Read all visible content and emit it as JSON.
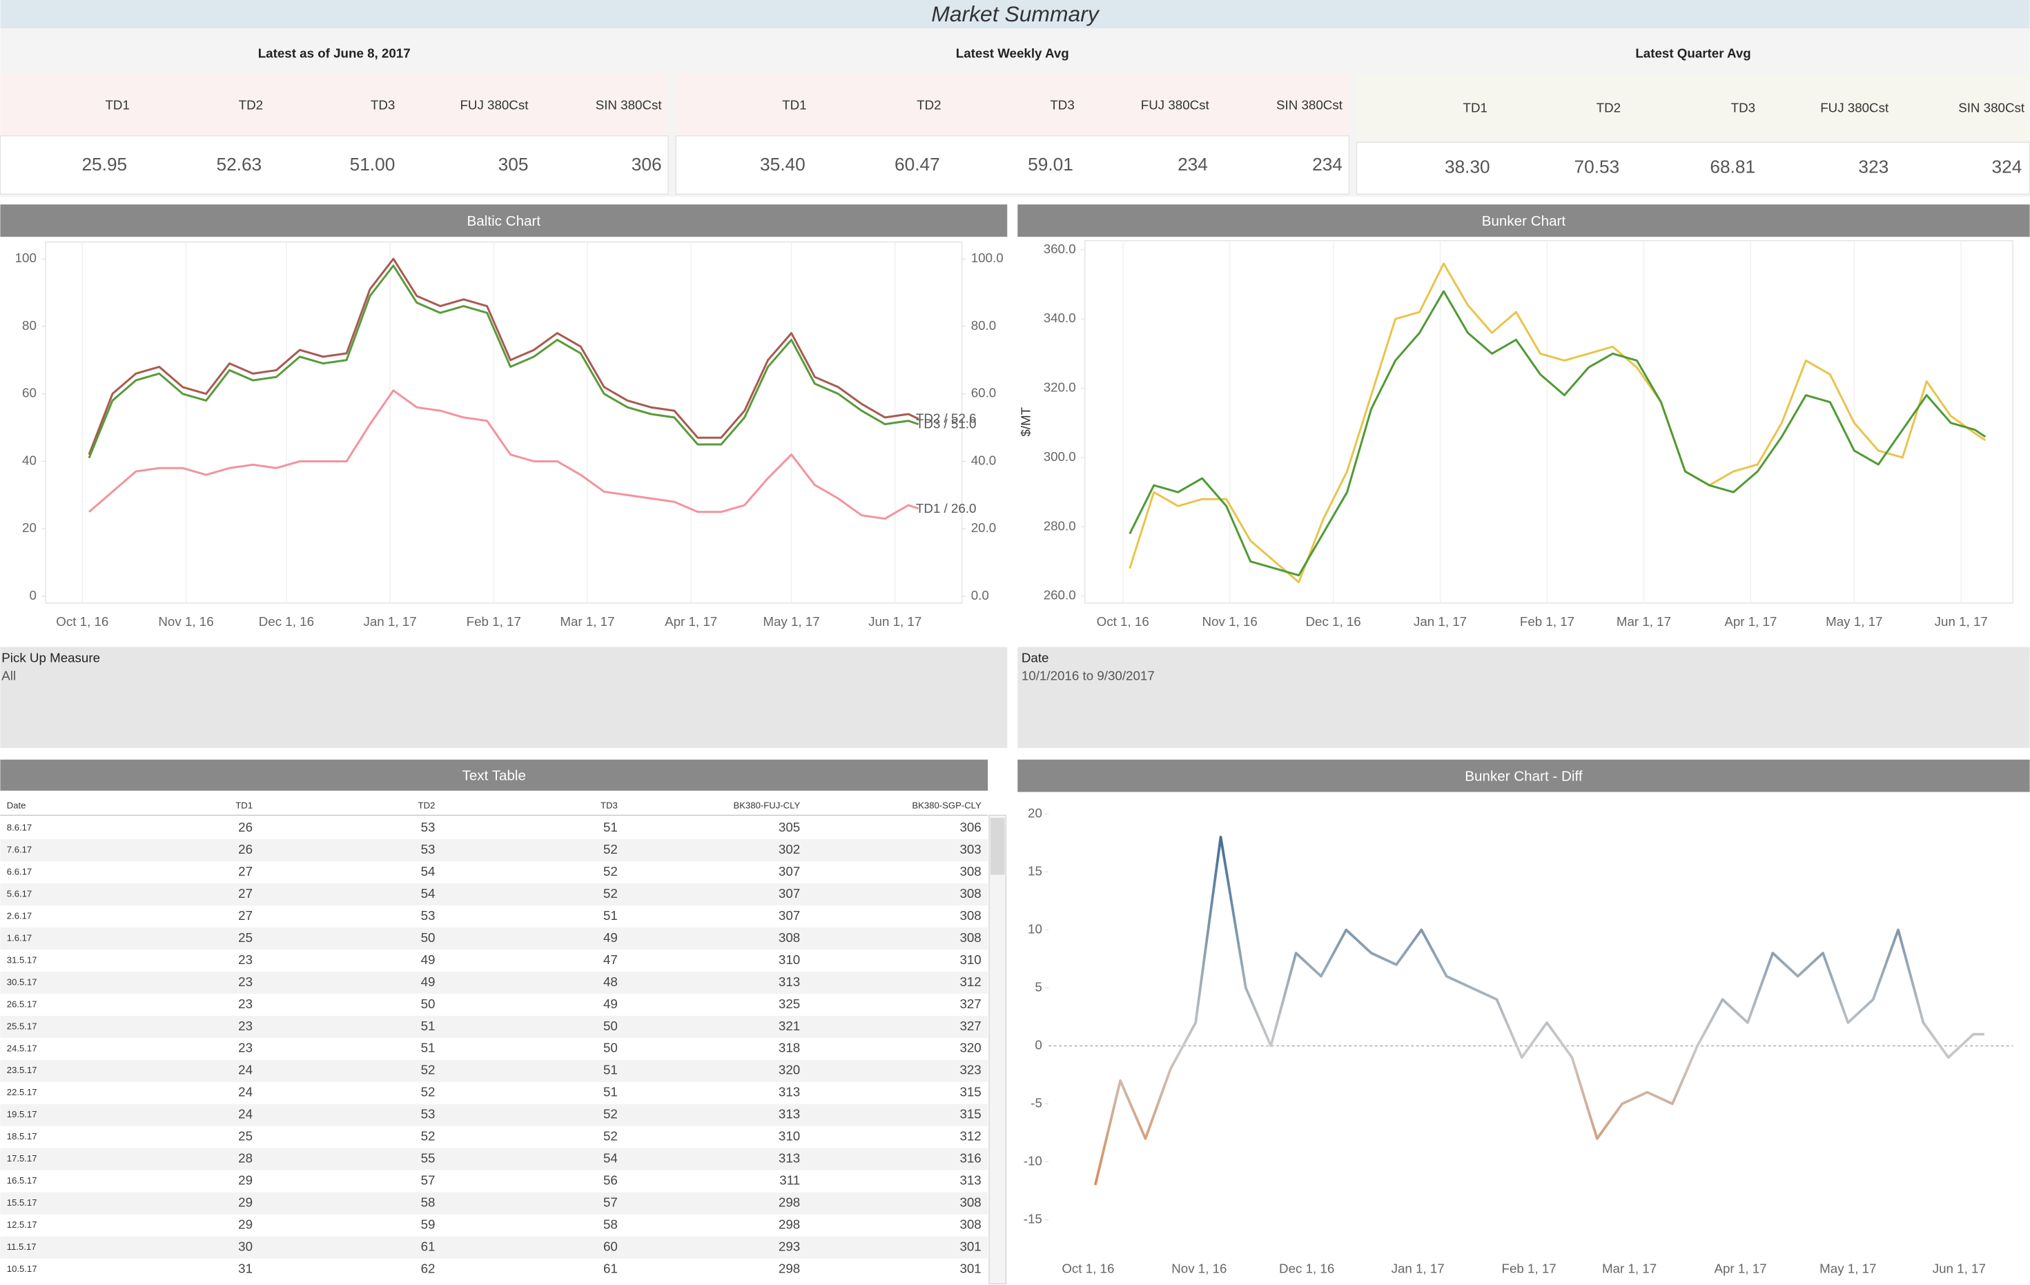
{
  "title": "Market Summary",
  "kpis": [
    {
      "title": "Latest as of June 8, 2017",
      "headers": [
        "TD1",
        "TD2",
        "TD3",
        "FUJ 380Cst",
        "SIN 380Cst"
      ],
      "values": [
        "25.95",
        "52.63",
        "51.00",
        "305",
        "306"
      ]
    },
    {
      "title": "Latest Weekly Avg",
      "headers": [
        "TD1",
        "TD2",
        "TD3",
        "FUJ 380Cst",
        "SIN 380Cst"
      ],
      "values": [
        "35.40",
        "60.47",
        "59.01",
        "234",
        "234"
      ]
    },
    {
      "title": "Latest Quarter Avg",
      "headers": [
        "TD1",
        "TD2",
        "TD3",
        "FUJ 380Cst",
        "SIN 380Cst"
      ],
      "values": [
        "38.30",
        "70.53",
        "68.81",
        "323",
        "324"
      ]
    }
  ],
  "filters": [
    {
      "label": "Pick Up Measure",
      "value": "All"
    },
    {
      "label": "Date",
      "value": "10/1/2016 to 9/30/2017"
    }
  ],
  "table": {
    "title": "Text Table",
    "columns": [
      "Date",
      "TD1",
      "TD2",
      "TD3",
      "BK380-FUJ-CLY",
      "BK380-SGP-CLY"
    ],
    "rows": [
      [
        "8.6.17",
        26,
        53,
        51,
        305,
        306
      ],
      [
        "7.6.17",
        26,
        53,
        52,
        302,
        303
      ],
      [
        "6.6.17",
        27,
        54,
        52,
        307,
        308
      ],
      [
        "5.6.17",
        27,
        54,
        52,
        307,
        308
      ],
      [
        "2.6.17",
        27,
        53,
        51,
        307,
        308
      ],
      [
        "1.6.17",
        25,
        50,
        49,
        308,
        308
      ],
      [
        "31.5.17",
        23,
        49,
        47,
        310,
        310
      ],
      [
        "30.5.17",
        23,
        49,
        48,
        313,
        312
      ],
      [
        "26.5.17",
        23,
        50,
        49,
        325,
        327
      ],
      [
        "25.5.17",
        23,
        51,
        50,
        321,
        327
      ],
      [
        "24.5.17",
        23,
        51,
        50,
        318,
        320
      ],
      [
        "23.5.17",
        24,
        52,
        51,
        320,
        323
      ],
      [
        "22.5.17",
        24,
        52,
        51,
        313,
        315
      ],
      [
        "19.5.17",
        24,
        53,
        52,
        313,
        315
      ],
      [
        "18.5.17",
        25,
        52,
        52,
        310,
        312
      ],
      [
        "17.5.17",
        28,
        55,
        54,
        313,
        316
      ],
      [
        "16.5.17",
        29,
        57,
        56,
        311,
        313
      ],
      [
        "15.5.17",
        29,
        58,
        57,
        298,
        308
      ],
      [
        "12.5.17",
        29,
        59,
        58,
        298,
        308
      ],
      [
        "11.5.17",
        30,
        61,
        60,
        293,
        301
      ],
      [
        "10.5.17",
        31,
        62,
        61,
        298,
        301
      ]
    ]
  },
  "chart_data": [
    {
      "type": "line",
      "title": "Baltic Chart",
      "grid": true,
      "x": [
        "2016-10-03",
        "2016-10-10",
        "2016-10-17",
        "2016-10-24",
        "2016-10-31",
        "2016-11-07",
        "2016-11-14",
        "2016-11-21",
        "2016-11-28",
        "2016-12-05",
        "2016-12-12",
        "2016-12-19",
        "2016-12-26",
        "2017-01-02",
        "2017-01-09",
        "2017-01-16",
        "2017-01-23",
        "2017-01-30",
        "2017-02-06",
        "2017-02-13",
        "2017-02-20",
        "2017-02-27",
        "2017-03-06",
        "2017-03-13",
        "2017-03-20",
        "2017-03-27",
        "2017-04-03",
        "2017-04-10",
        "2017-04-17",
        "2017-04-24",
        "2017-05-01",
        "2017-05-08",
        "2017-05-15",
        "2017-05-22",
        "2017-05-29",
        "2017-06-05",
        "2017-06-08"
      ],
      "xlim": [
        "2016-09-20",
        "2017-06-21"
      ],
      "xticks": [
        {
          "value": "2016-10-01",
          "label": "Oct 1, 16"
        },
        {
          "value": "2016-11-01",
          "label": "Nov 1, 16"
        },
        {
          "value": "2016-12-01",
          "label": "Dec 1, 16"
        },
        {
          "value": "2017-01-01",
          "label": "Jan 1, 17"
        },
        {
          "value": "2017-02-01",
          "label": "Feb 1, 17"
        },
        {
          "value": "2017-03-01",
          "label": "Mar 1, 17"
        },
        {
          "value": "2017-04-01",
          "label": "Apr 1, 17"
        },
        {
          "value": "2017-05-01",
          "label": "May 1, 17"
        },
        {
          "value": "2017-06-01",
          "label": "Jun 1, 17"
        }
      ],
      "ylim": [
        -2,
        105
      ],
      "yticks": [
        0,
        20,
        40,
        60,
        80,
        100
      ],
      "y2lim": [
        -2,
        105
      ],
      "y2ticks": [
        {
          "value": 0,
          "label": "0.0"
        },
        {
          "value": 20,
          "label": "20.0"
        },
        {
          "value": 40,
          "label": "40.0"
        },
        {
          "value": 60,
          "label": "60.0"
        },
        {
          "value": 80,
          "label": "80.0"
        },
        {
          "value": 100,
          "label": "100.0"
        }
      ],
      "series": [
        {
          "color": "#a85a50",
          "end_label": "TD2 / 52.6",
          "values": [
            42,
            60,
            66,
            68,
            62,
            60,
            69,
            66,
            67,
            73,
            71,
            72,
            91,
            100,
            89,
            86,
            88,
            86,
            70,
            73,
            78,
            74,
            62,
            58,
            56,
            55,
            47,
            47,
            55,
            70,
            78,
            65,
            62,
            57,
            53,
            54,
            52.6
          ]
        },
        {
          "color": "#5a9a3c",
          "end_label": "TD3 / 51.0",
          "values": [
            41,
            58,
            64,
            66,
            60,
            58,
            67,
            64,
            65,
            71,
            69,
            70,
            89,
            98,
            87,
            84,
            86,
            84,
            68,
            71,
            76,
            72,
            60,
            56,
            54,
            53,
            45,
            45,
            53,
            68,
            76,
            63,
            60,
            55,
            51,
            52,
            51.0
          ]
        },
        {
          "color": "#f4939c",
          "axis": "y2",
          "end_label": "TD1 / 26.0",
          "values": [
            25,
            31,
            37,
            38,
            38,
            36,
            38,
            39,
            38,
            40,
            40,
            40,
            51,
            61,
            56,
            55,
            53,
            52,
            42,
            40,
            40,
            36,
            31,
            30,
            29,
            28,
            25,
            25,
            27,
            35,
            42,
            33,
            29,
            24,
            23,
            27,
            26.0
          ]
        }
      ]
    },
    {
      "type": "line",
      "title": "Bunker Chart",
      "ylabel": "$/MT",
      "grid": true,
      "x": [
        "2016-10-03",
        "2016-10-10",
        "2016-10-17",
        "2016-10-24",
        "2016-10-31",
        "2016-11-07",
        "2016-11-14",
        "2016-11-21",
        "2016-11-28",
        "2016-12-05",
        "2016-12-12",
        "2016-12-19",
        "2016-12-26",
        "2017-01-02",
        "2017-01-09",
        "2017-01-16",
        "2017-01-23",
        "2017-01-30",
        "2017-02-06",
        "2017-02-13",
        "2017-02-20",
        "2017-02-27",
        "2017-03-06",
        "2017-03-13",
        "2017-03-20",
        "2017-03-27",
        "2017-04-03",
        "2017-04-10",
        "2017-04-17",
        "2017-04-24",
        "2017-05-01",
        "2017-05-08",
        "2017-05-15",
        "2017-05-22",
        "2017-05-29",
        "2017-06-05",
        "2017-06-08"
      ],
      "xlim": [
        "2016-09-20",
        "2017-06-16"
      ],
      "xticks": [
        {
          "value": "2016-10-01",
          "label": "Oct 1, 16"
        },
        {
          "value": "2016-11-01",
          "label": "Nov 1, 16"
        },
        {
          "value": "2016-12-01",
          "label": "Dec 1, 16"
        },
        {
          "value": "2017-01-01",
          "label": "Jan 1, 17"
        },
        {
          "value": "2017-02-01",
          "label": "Feb 1, 17"
        },
        {
          "value": "2017-03-01",
          "label": "Mar 1, 17"
        },
        {
          "value": "2017-04-01",
          "label": "Apr 1, 17"
        },
        {
          "value": "2017-05-01",
          "label": "May 1, 17"
        },
        {
          "value": "2017-06-01",
          "label": "Jun 1, 17"
        }
      ],
      "ylim": [
        258,
        362.6
      ],
      "yticks": [
        {
          "value": 260,
          "label": "260.0"
        },
        {
          "value": 280,
          "label": "280.0"
        },
        {
          "value": 300,
          "label": "300.0"
        },
        {
          "value": 320,
          "label": "320.0"
        },
        {
          "value": 340,
          "label": "340.0"
        },
        {
          "value": 360,
          "label": "360.0"
        }
      ],
      "series": [
        {
          "color": "#e9c44c",
          "values": [
            268,
            290,
            286,
            288,
            288,
            276,
            270,
            264,
            282,
            296,
            318,
            340,
            342,
            356,
            344,
            336,
            342,
            330,
            328,
            330,
            332,
            326,
            316,
            296,
            292,
            296,
            298,
            310,
            328,
            324,
            310,
            302,
            300,
            322,
            312,
            307,
            305
          ]
        },
        {
          "color": "#4f9a35",
          "values": [
            278,
            292,
            290,
            294,
            286,
            270,
            268,
            266,
            278,
            290,
            314,
            328,
            336,
            348,
            336,
            330,
            334,
            324,
            318,
            326,
            330,
            328,
            316,
            296,
            292,
            290,
            296,
            306,
            318,
            316,
            302,
            298,
            308,
            318,
            310,
            308,
            306
          ]
        }
      ]
    },
    {
      "type": "gradient_line",
      "title": "Bunker Chart - Diff",
      "zero_line": true,
      "x": [
        "2016-10-03",
        "2016-10-10",
        "2016-10-17",
        "2016-10-24",
        "2016-10-31",
        "2016-11-07",
        "2016-11-14",
        "2016-11-21",
        "2016-11-28",
        "2016-12-05",
        "2016-12-12",
        "2016-12-19",
        "2016-12-26",
        "2017-01-02",
        "2017-01-09",
        "2017-01-16",
        "2017-01-23",
        "2017-01-30",
        "2017-02-06",
        "2017-02-13",
        "2017-02-20",
        "2017-02-27",
        "2017-03-06",
        "2017-03-13",
        "2017-03-20",
        "2017-03-27",
        "2017-04-03",
        "2017-04-10",
        "2017-04-17",
        "2017-04-24",
        "2017-05-01",
        "2017-05-08",
        "2017-05-15",
        "2017-05-22",
        "2017-05-29",
        "2017-06-05",
        "2017-06-08"
      ],
      "xlim": [
        "2016-09-20",
        "2017-06-16"
      ],
      "xticks": [
        {
          "value": "2016-10-01",
          "label": "Oct 1, 16"
        },
        {
          "value": "2016-11-01",
          "label": "Nov 1, 16"
        },
        {
          "value": "2016-12-01",
          "label": "Dec 1, 16"
        },
        {
          "value": "2017-01-01",
          "label": "Jan 1, 17"
        },
        {
          "value": "2017-02-01",
          "label": "Feb 1, 17"
        },
        {
          "value": "2017-03-01",
          "label": "Mar 1, 17"
        },
        {
          "value": "2017-04-01",
          "label": "Apr 1, 17"
        },
        {
          "value": "2017-05-01",
          "label": "May 1, 17"
        },
        {
          "value": "2017-06-01",
          "label": "Jun 1, 17"
        }
      ],
      "ylim": [
        -17.5,
        21
      ],
      "yticks": [
        -15,
        -10,
        -5,
        0,
        5,
        10,
        15,
        20
      ],
      "color_scale": {
        "negative": "#e0712a",
        "zero": "#c9c9c9",
        "positive": "#2b5f8e"
      },
      "series": [
        {
          "values": [
            -12,
            -3,
            -8,
            -2,
            2,
            18,
            5,
            0,
            8,
            6,
            10,
            8,
            7,
            10,
            6,
            5,
            4,
            -1,
            2,
            -1,
            -8,
            -5,
            -4,
            -5,
            0,
            4,
            2,
            8,
            6,
            8,
            2,
            4,
            10,
            2,
            -1,
            1,
            1
          ]
        }
      ]
    }
  ]
}
